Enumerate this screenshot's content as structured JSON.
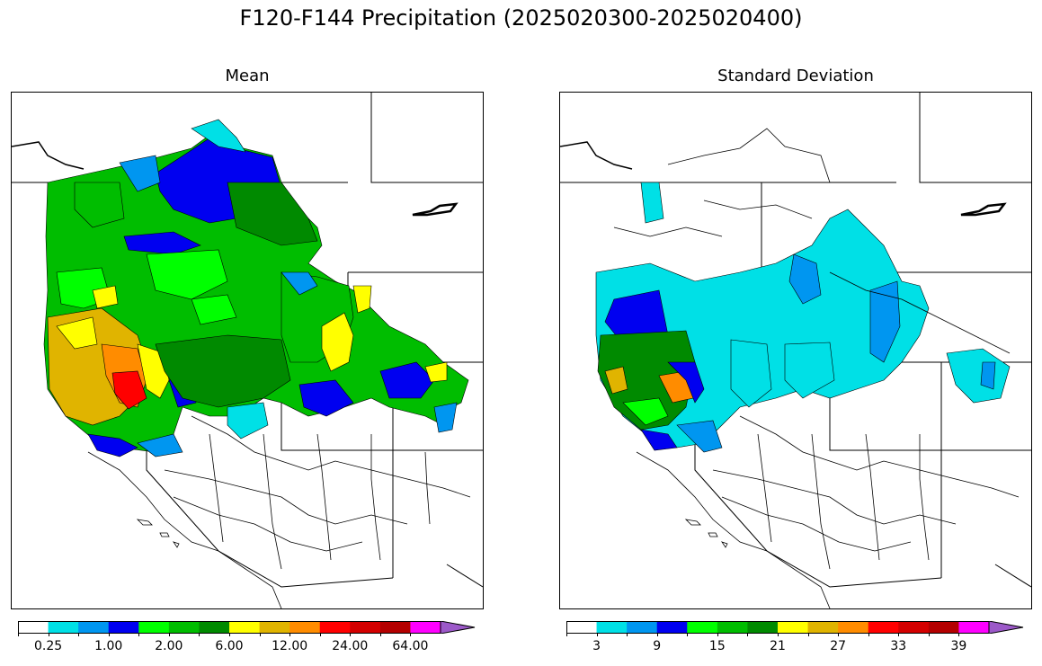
{
  "title": "F120-F144 Precipitation (2025020300-2025020400)",
  "panels": [
    {
      "title": "Mean",
      "colorbar": {
        "colors": [
          "#ffffff",
          "#00e0e6",
          "#0096f0",
          "#0000f0",
          "#00ff00",
          "#00bd00",
          "#008a00",
          "#ffff00",
          "#e0b400",
          "#ff8c00",
          "#ff0000",
          "#d40000",
          "#b40000",
          "#ff00ff",
          "#9c59c9"
        ],
        "labels": [
          "0.25",
          "1.00",
          "2.00",
          "6.00",
          "12.00",
          "24.00",
          "64.00"
        ],
        "label_boundaries": [
          1,
          3,
          5,
          7,
          9,
          11,
          13
        ]
      }
    },
    {
      "title": "Standard Deviation",
      "colorbar": {
        "colors": [
          "#ffffff",
          "#00e0e6",
          "#0096f0",
          "#0000f0",
          "#00ff00",
          "#00bd00",
          "#008a00",
          "#ffff00",
          "#e0b400",
          "#ff8c00",
          "#ff0000",
          "#d40000",
          "#b40000",
          "#ff00ff",
          "#9c59c9"
        ],
        "labels": [
          "3",
          "9",
          "15",
          "21",
          "27",
          "33",
          "39"
        ],
        "label_boundaries": [
          1,
          3,
          5,
          7,
          9,
          11,
          13
        ]
      }
    }
  ]
}
